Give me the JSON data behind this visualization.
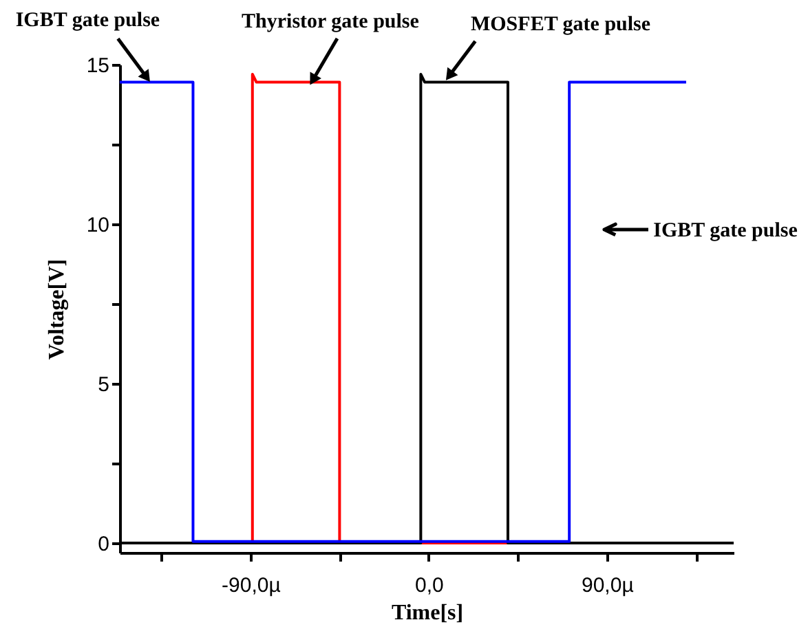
{
  "chart_data": {
    "type": "line",
    "xlabel": "Time[s]",
    "ylabel": "Voltage[V]",
    "xlim": [
      -156,
      154
    ],
    "xticks": [
      {
        "value": -135,
        "label": null
      },
      {
        "value": -90,
        "label": "-90,0µ"
      },
      {
        "value": -45,
        "label": null
      },
      {
        "value": 0,
        "label": "0,0"
      },
      {
        "value": 45,
        "label": null
      },
      {
        "value": 90,
        "label": "90,0µ"
      },
      {
        "value": 135,
        "label": null
      }
    ],
    "ylim": [
      -0.3,
      15
    ],
    "yticks": [
      0,
      {
        "value": 2.5,
        "label": null
      },
      5,
      {
        "value": 7.5,
        "label": null
      },
      10,
      {
        "value": 12.5,
        "label": null
      },
      15
    ],
    "grid": false,
    "marker": "none",
    "line_style": "solid",
    "series": [
      {
        "color": "#ff0000",
        "x": [
          -156,
          -89,
          -89,
          -87,
          -45,
          -45,
          154
        ],
        "values": [
          0,
          0,
          14.7,
          14.45,
          14.45,
          0,
          0
        ]
      },
      {
        "color": "#000000",
        "x": [
          -156,
          -4,
          -4,
          -2,
          40,
          40,
          154
        ],
        "values": [
          0,
          0,
          14.7,
          14.45,
          14.45,
          0,
          0
        ]
      },
      {
        "color": "#0000ff",
        "x": [
          -156,
          -119,
          -119,
          71,
          71,
          130
        ],
        "values": [
          14.45,
          14.45,
          0.05,
          0.05,
          14.45,
          14.45
        ]
      }
    ],
    "annotations": [
      {
        "text": "IGBT gate pulse",
        "x": -143,
        "y": 14.65
      },
      {
        "text": "Thyristor gate pulse",
        "x": -58,
        "y": 14.57
      },
      {
        "text": "MOSFET gate pulse",
        "x": 11,
        "y": 14.7
      },
      "IGBT gate pulse"
    ]
  }
}
